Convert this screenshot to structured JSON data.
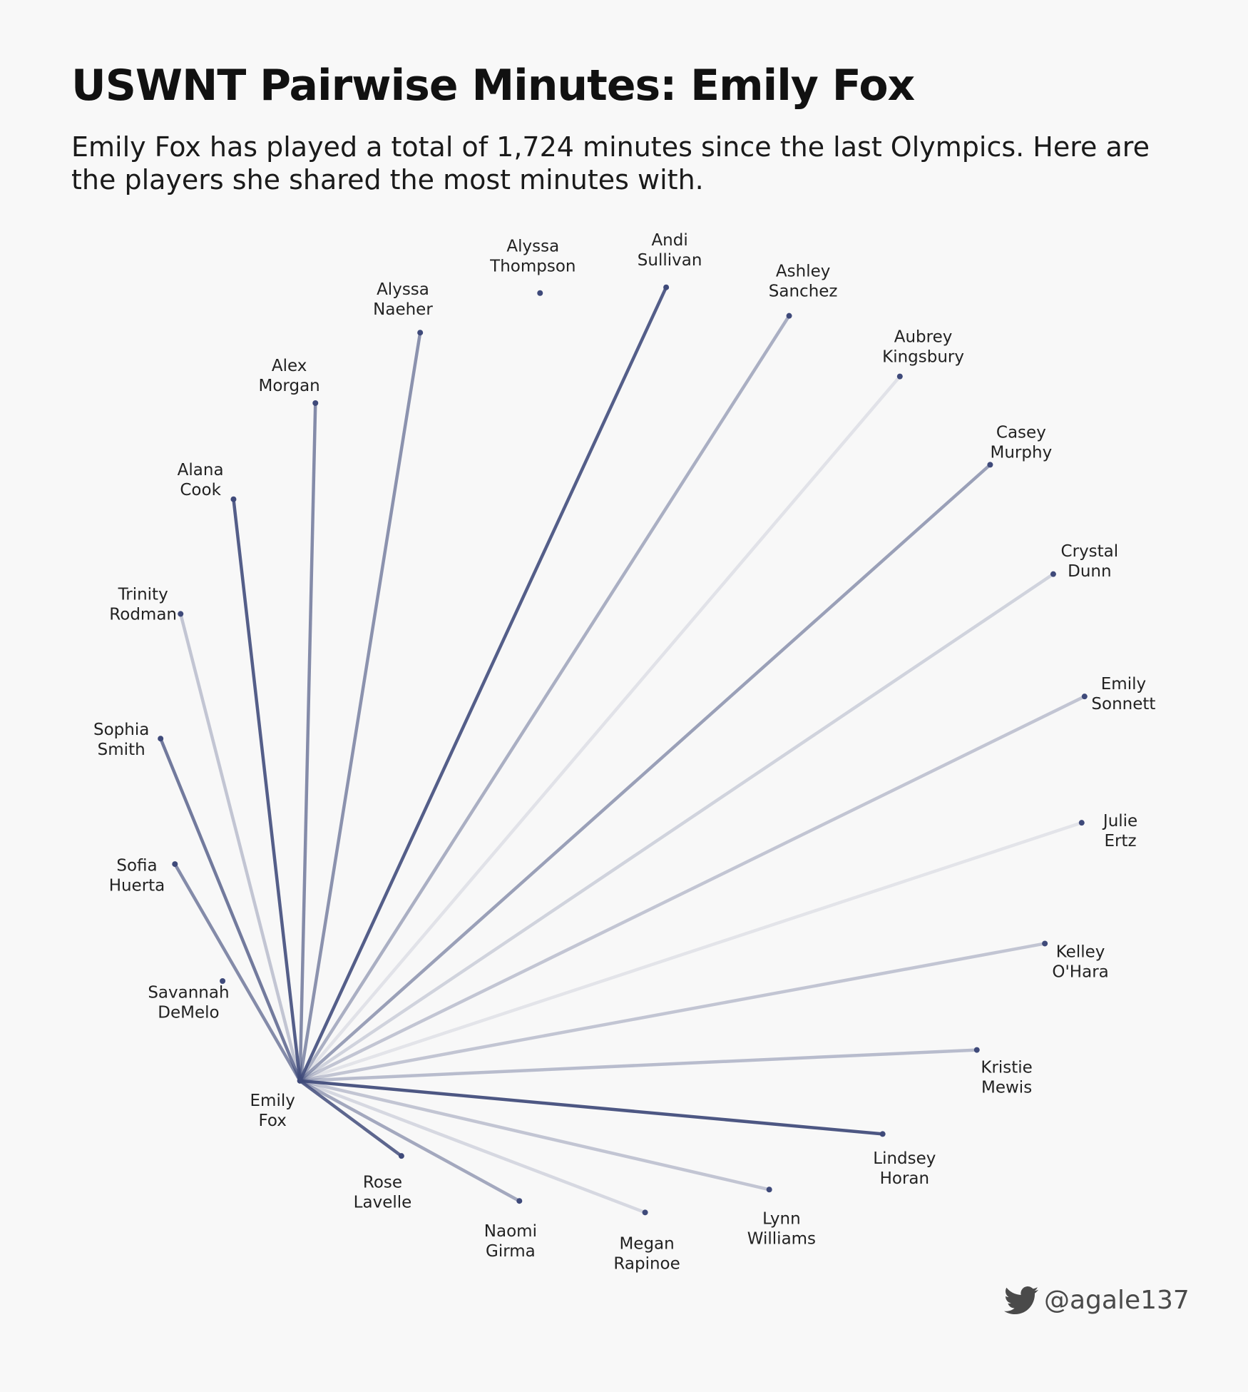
{
  "title": "USWNT Pairwise Minutes: Emily Fox",
  "subtitle": "Emily Fox has played a total of 1,724 minutes since the last Olympics. Here are the players she shared the most minutes with.",
  "credit": {
    "handle": "@agale137",
    "icon": "twitter-bird-icon"
  },
  "colors": {
    "line": "#3f4a7a",
    "node": "#3f4a7a",
    "background": "#f8f8f8"
  },
  "chart_data": {
    "type": "radial-network",
    "center": {
      "first": "Emily",
      "last": "Fox",
      "minutes": 1724
    },
    "players": [
      {
        "first": "Savannah",
        "last": "DeMelo",
        "shared": 0
      },
      {
        "first": "Sofia",
        "last": "Huerta",
        "shared": 0.65
      },
      {
        "first": "Sophia",
        "last": "Smith",
        "shared": 0.75
      },
      {
        "first": "Trinity",
        "last": "Rodman",
        "shared": 0.25
      },
      {
        "first": "Alana",
        "last": "Cook",
        "shared": 0.95
      },
      {
        "first": "Alex",
        "last": "Morgan",
        "shared": 0.65
      },
      {
        "first": "Alyssa",
        "last": "Naeher",
        "shared": 0.6
      },
      {
        "first": "Alyssa",
        "last": "Thompson",
        "shared": 0
      },
      {
        "first": "Andi",
        "last": "Sullivan",
        "shared": 0.95
      },
      {
        "first": "Ashley",
        "last": "Sanchez",
        "shared": 0.4
      },
      {
        "first": "Aubrey",
        "last": "Kingsbury",
        "shared": 0.05
      },
      {
        "first": "Casey",
        "last": "Murphy",
        "shared": 0.5
      },
      {
        "first": "Crystal",
        "last": "Dunn",
        "shared": 0.15
      },
      {
        "first": "Emily",
        "last": "Sonnett",
        "shared": 0.25
      },
      {
        "first": "Julie",
        "last": "Ertz",
        "shared": 0.03
      },
      {
        "first": "Kelley",
        "last": "O'Hara",
        "shared": 0.25
      },
      {
        "first": "Kristie",
        "last": "Mewis",
        "shared": 0.3
      },
      {
        "first": "Lindsey",
        "last": "Horan",
        "shared": 1.0
      },
      {
        "first": "Lynn",
        "last": "Williams",
        "shared": 0.25
      },
      {
        "first": "Megan",
        "last": "Rapinoe",
        "shared": 0.12
      },
      {
        "first": "Naomi",
        "last": "Girma",
        "shared": 0.45
      },
      {
        "first": "Rose",
        "last": "Lavelle",
        "shared": 0.9
      }
    ]
  }
}
